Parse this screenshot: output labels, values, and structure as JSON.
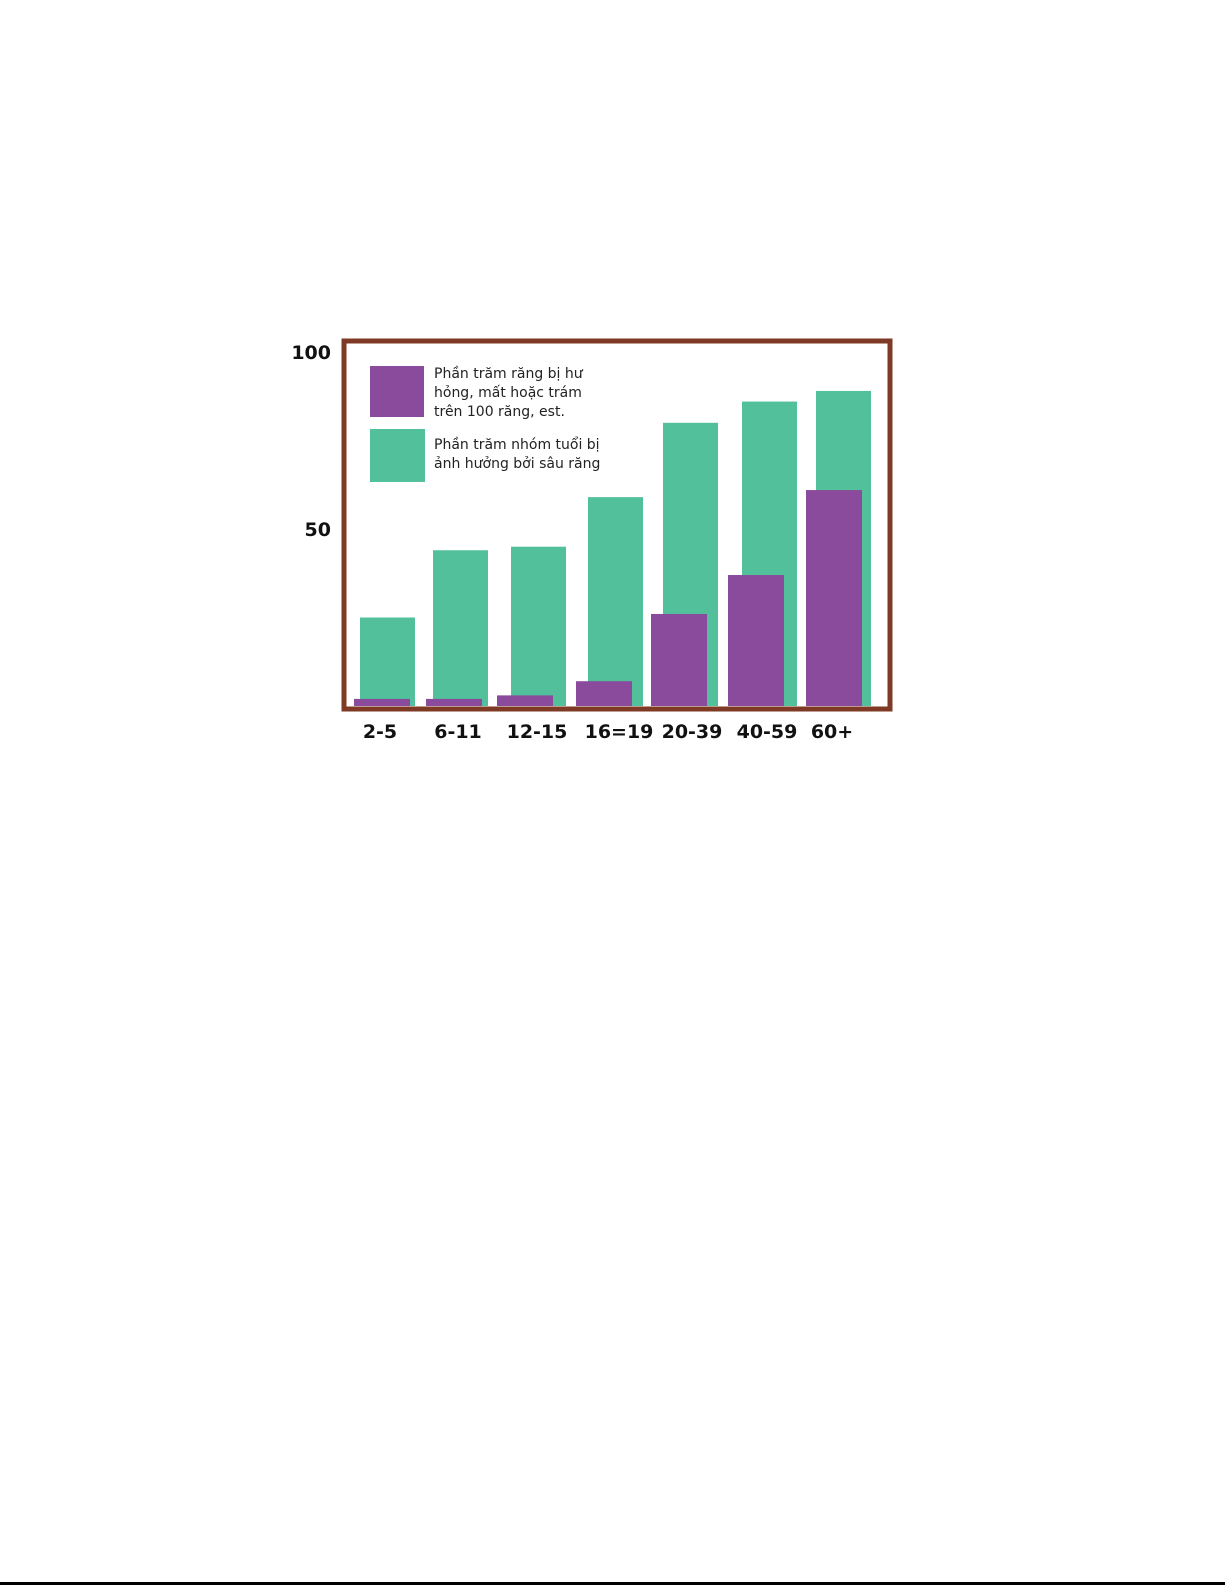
{
  "chart_data": {
    "type": "bar",
    "categories": [
      "2-5",
      "6-11",
      "12-15",
      "16=19",
      "20-39",
      "40-59",
      "60+"
    ],
    "series": [
      {
        "name": "Phần trăm răng bị hư hỏng, mất hoặc trám trên 100 răng, est.",
        "legend_lines": [
          "Phần trăm răng bị hư",
          "hỏng, mất hoặc trám",
          "trên 100 răng, est."
        ],
        "color": "#8a4b9c",
        "values": [
          2,
          2,
          3,
          7,
          26,
          37,
          61
        ]
      },
      {
        "name": "Phần trăm nhóm tuổi bị ảnh hưởng bởi sâu răng",
        "legend_lines": [
          "Phần trăm nhóm tuổi bị",
          "ảnh hưởng bởi sâu răng"
        ],
        "color": "#52c09b",
        "values": [
          25,
          44,
          45,
          59,
          80,
          86,
          89
        ]
      }
    ],
    "yticks": [
      50,
      100
    ],
    "ylim": [
      0,
      106
    ],
    "legend_position": "top-left",
    "frame_color": "#7e3a25",
    "title": "",
    "xlabel": "",
    "ylabel": ""
  }
}
